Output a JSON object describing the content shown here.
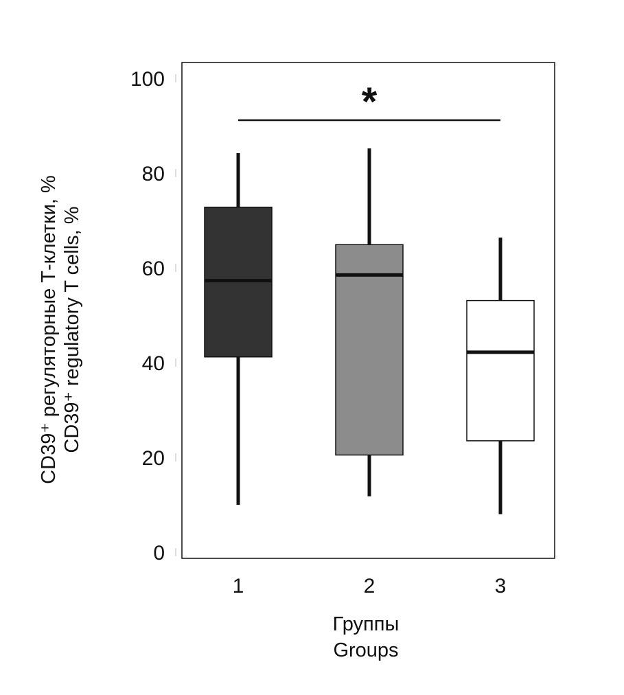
{
  "chart_data": {
    "type": "boxplot",
    "xlabel": [
      "Группы",
      "Groups"
    ],
    "ylabel": [
      "CD39⁺ регуляторные Т-клетки, %",
      "CD39⁺ regulatory T cells, %"
    ],
    "ylim": [
      0,
      100
    ],
    "yticks": [
      0,
      20,
      40,
      60,
      80,
      100
    ],
    "categories": [
      "1",
      "2",
      "3"
    ],
    "boxes": [
      {
        "category": "1",
        "whisker_low": 10.0,
        "q1": 41.2,
        "median": 57.3,
        "q3": 72.8,
        "whisker_high": 84.2,
        "color": "#333333"
      },
      {
        "category": "2",
        "whisker_low": 11.8,
        "q1": 20.5,
        "median": 58.5,
        "q3": 64.9,
        "whisker_high": 85.2,
        "color": "#8c8c8c"
      },
      {
        "category": "3",
        "whisker_low": 8.0,
        "q1": 23.5,
        "median": 42.2,
        "q3": 53.1,
        "whisker_high": 66.4,
        "color": "#ffffff"
      }
    ],
    "significance": {
      "from": "1",
      "to": "3",
      "label": "*"
    },
    "grid": false,
    "legend": "none"
  }
}
